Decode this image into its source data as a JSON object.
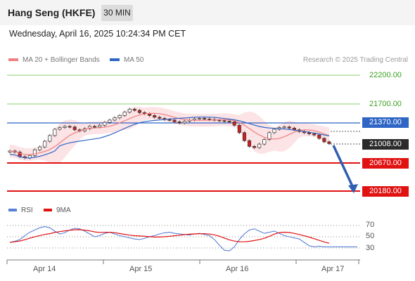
{
  "header": {
    "title": "Hang Seng (HKFE)",
    "interval": "30 MIN",
    "timestamp": "Wednesday, April 16, 2025 10:24:34 PM CET"
  },
  "legend": {
    "ma20": "MA 20 + Bollinger Bands",
    "ma50": "MA 50",
    "credit": "Research © 2025 Trading Central"
  },
  "levels": {
    "r2": "22200.00",
    "r1": "21700.00",
    "pivot": "21370.00",
    "last": "21008.00",
    "s1": "20670.00",
    "s2": "20180.00"
  },
  "rsi": {
    "rsi_label": "RSI",
    "ma_label": "9MA",
    "ticks": [
      "70",
      "50",
      "30"
    ]
  },
  "xaxis": [
    "Apr 14",
    "Apr 15",
    "Apr 16",
    "Apr 17"
  ],
  "colors": {
    "ma20": "#f08080",
    "ma50": "#2f66c6",
    "band_fill": "#fbd9dc",
    "bull": "#ffffff",
    "bear": "#cf2020",
    "resistance": "#8fd26b",
    "pivot": "#2f66c6",
    "support": "#e01212",
    "rsi": "#5b7fd6",
    "rsi_ma": "#e01212"
  },
  "chart_data": {
    "type": "candlestick",
    "price_levels": [
      22200,
      21700,
      21370,
      21008,
      20670,
      20180
    ],
    "price_close_series": [
      20880,
      20860,
      20780,
      20760,
      20800,
      20900,
      20950,
      21050,
      21150,
      21260,
      21290,
      21310,
      21300,
      21250,
      21230,
      21270,
      21310,
      21300,
      21330,
      21380,
      21420,
      21460,
      21500,
      21560,
      21610,
      21590,
      21550,
      21530,
      21500,
      21470,
      21450,
      21430,
      21420,
      21390,
      21370,
      21400,
      21420,
      21440,
      21450,
      21440,
      21430,
      21420,
      21410,
      21400,
      21390,
      21330,
      21200,
      21060,
      20960,
      20940,
      21000,
      21080,
      21200,
      21260,
      21290,
      21300,
      21280,
      21250,
      21220,
      21200,
      21180,
      21160,
      21100,
      21040,
      21008
    ],
    "projection": {
      "from": 21008,
      "to": 20180
    },
    "rsi_values": [
      40,
      42,
      45,
      52,
      58,
      62,
      66,
      68,
      66,
      60,
      55,
      57,
      62,
      65,
      64,
      60,
      55,
      50,
      52,
      56,
      58,
      55,
      52,
      50,
      48,
      46,
      45,
      47,
      50,
      52,
      55,
      57,
      58,
      56,
      55,
      54,
      53,
      55,
      56,
      54,
      52,
      45,
      35,
      26,
      25,
      32,
      45,
      55,
      62,
      64,
      60,
      56,
      58,
      60,
      56,
      52,
      50,
      48,
      46,
      40,
      34,
      32,
      33,
      32,
      32
    ],
    "rsi_ticks": [
      70,
      50,
      30
    ],
    "x_labels": [
      "Apr 14",
      "Apr 15",
      "Apr 16",
      "Apr 17"
    ]
  }
}
